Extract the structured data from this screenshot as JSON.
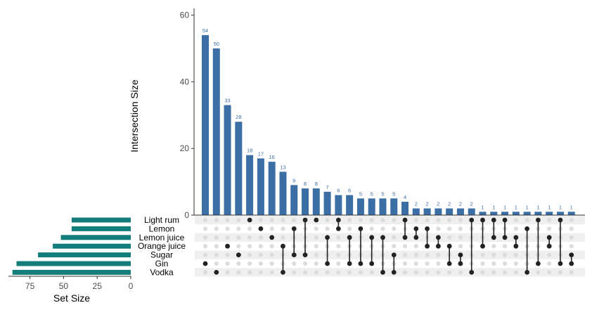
{
  "chart_data": {
    "type": "upset",
    "ylabel": "Intersection Size",
    "xlabel_sets": "Set Size",
    "y_ticks": [
      "0",
      "20",
      "40",
      "60"
    ],
    "ylim": [
      0,
      62
    ],
    "set_size_ticks": [
      "75",
      "50",
      "25",
      "0"
    ],
    "set_size_lim": [
      0,
      91
    ],
    "bar_color": "#3a6ea5",
    "set_bar_color": "#127d7a",
    "sets": [
      {
        "name": "Light rum",
        "size": 44
      },
      {
        "name": "Lemon",
        "size": 44
      },
      {
        "name": "Lemon juice",
        "size": 52
      },
      {
        "name": "Orange juice",
        "size": 58
      },
      {
        "name": "Sugar",
        "size": 69
      },
      {
        "name": "Gin",
        "size": 85
      },
      {
        "name": "Vodka",
        "size": 88
      }
    ],
    "intersections": [
      {
        "value": 54,
        "label": "54",
        "sets": [
          "Gin"
        ]
      },
      {
        "value": 50,
        "label": "50",
        "sets": [
          "Vodka"
        ]
      },
      {
        "value": 33,
        "label": "33",
        "sets": [
          "Orange juice"
        ]
      },
      {
        "value": 28,
        "label": "28",
        "sets": [
          "Sugar"
        ]
      },
      {
        "value": 18,
        "label": "18",
        "sets": [
          "Light rum"
        ]
      },
      {
        "value": 17,
        "label": "17",
        "sets": [
          "Lemon"
        ]
      },
      {
        "value": 16,
        "label": "16",
        "sets": [
          "Lemon juice"
        ]
      },
      {
        "value": 13,
        "label": "13",
        "sets": [
          "Orange juice",
          "Vodka"
        ]
      },
      {
        "value": 9,
        "label": "9",
        "sets": [
          "Lemon",
          "Sugar"
        ]
      },
      {
        "value": 8,
        "label": "8",
        "sets": [
          "Light rum",
          "Sugar"
        ]
      },
      {
        "value": 8,
        "label": "8",
        "sets": [
          "Light rum"
        ]
      },
      {
        "value": 7,
        "label": "7",
        "sets": [
          "Lemon juice",
          "Gin"
        ]
      },
      {
        "value": 6,
        "label": "6",
        "sets": [
          "Light rum",
          "Lemon"
        ]
      },
      {
        "value": 6,
        "label": "6",
        "sets": [
          "Lemon juice",
          "Gin"
        ]
      },
      {
        "value": 5,
        "label": "5",
        "sets": [
          "Lemon",
          "Gin"
        ]
      },
      {
        "value": 5,
        "label": "5",
        "sets": [
          "Lemon juice",
          "Gin"
        ]
      },
      {
        "value": 5,
        "label": "5",
        "sets": [
          "Lemon juice",
          "Vodka"
        ]
      },
      {
        "value": 5,
        "label": "5",
        "sets": [
          "Sugar",
          "Vodka"
        ]
      },
      {
        "value": 4,
        "label": "4",
        "sets": [
          "Light rum",
          "Lemon juice"
        ]
      },
      {
        "value": 2,
        "label": "2",
        "sets": [
          "Lemon",
          "Lemon juice"
        ]
      },
      {
        "value": 2,
        "label": "2",
        "sets": [
          "Lemon",
          "Orange juice"
        ]
      },
      {
        "value": 2,
        "label": "2",
        "sets": [
          "Lemon juice",
          "Orange juice"
        ]
      },
      {
        "value": 2,
        "label": "2",
        "sets": [
          "Orange juice",
          "Gin"
        ]
      },
      {
        "value": 2,
        "label": "2",
        "sets": [
          "Sugar",
          "Gin"
        ]
      },
      {
        "value": 2,
        "label": "2",
        "sets": [
          "Light rum",
          "Vodka"
        ]
      },
      {
        "value": 1,
        "label": "1",
        "sets": [
          "Light rum",
          "Orange juice"
        ]
      },
      {
        "value": 1,
        "label": "1",
        "sets": [
          "Light rum",
          "Lemon juice"
        ]
      },
      {
        "value": 1,
        "label": "1",
        "sets": [
          "Light rum",
          "Lemon juice"
        ]
      },
      {
        "value": 1,
        "label": "1",
        "sets": [
          "Lemon juice",
          "Orange juice"
        ]
      },
      {
        "value": 1,
        "label": "1",
        "sets": [
          "Lemon",
          "Vodka"
        ]
      },
      {
        "value": 1,
        "label": "1",
        "sets": [
          "Light rum",
          "Gin"
        ]
      },
      {
        "value": 1,
        "label": "1",
        "sets": [
          "Lemon juice",
          "Orange juice"
        ]
      },
      {
        "value": 1,
        "label": "1",
        "sets": [
          "Light rum",
          "Gin"
        ]
      },
      {
        "value": 1,
        "label": "1",
        "sets": [
          "Sugar",
          "Gin"
        ]
      }
    ]
  }
}
